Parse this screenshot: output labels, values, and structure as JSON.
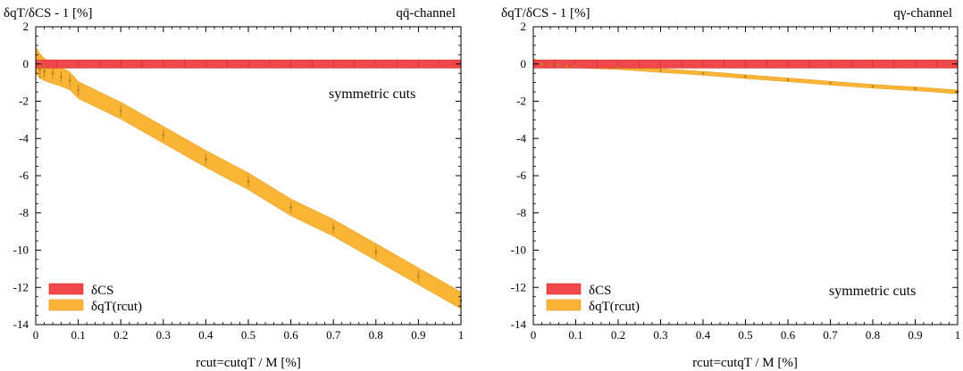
{
  "chart_data": [
    {
      "type": "area",
      "ylabel": "δqT/δCS - 1 [%]",
      "channel_label": "qq̄-channel",
      "xlabel": "rcut=cutqT / M [%]",
      "annotation": "symmetric cuts",
      "xlim": [
        0,
        1
      ],
      "ylim": [
        -14,
        2
      ],
      "xticks": [
        "0",
        "0.1",
        "0.2",
        "0.3",
        "0.4",
        "0.5",
        "0.6",
        "0.7",
        "0.8",
        "0.9",
        "1"
      ],
      "yticks": [
        "2",
        "0",
        "-2",
        "-4",
        "-6",
        "-8",
        "-10",
        "-12",
        "-14"
      ],
      "legend_placement": "bottom-left",
      "colors": {
        "cs": "#f0484a",
        "qt": "#fbb536",
        "point": "#b8861e"
      },
      "series": [
        {
          "name": "δCS",
          "x": [
            0,
            1
          ],
          "y": [
            0,
            0
          ],
          "band": 0.22
        },
        {
          "name": "δqT(rcut)",
          "x": [
            0.0,
            0.01,
            0.02,
            0.04,
            0.06,
            0.08,
            0.1,
            0.2,
            0.3,
            0.4,
            0.5,
            0.6,
            0.7,
            0.8,
            0.9,
            1.0
          ],
          "y": [
            0.2,
            -0.1,
            -0.3,
            -0.5,
            -0.7,
            -0.9,
            -1.4,
            -2.5,
            -3.8,
            -5.1,
            -6.3,
            -7.7,
            -8.8,
            -10.1,
            -11.4,
            -12.7
          ],
          "err": [
            0.7,
            0.65,
            0.6,
            0.55,
            0.5,
            0.48,
            0.45,
            0.45,
            0.45,
            0.45,
            0.45,
            0.45,
            0.45,
            0.45,
            0.45,
            0.45
          ],
          "points": [
            {
              "x": 0.01,
              "y": -0.3,
              "e": 0.5
            },
            {
              "x": 0.02,
              "y": -0.4,
              "e": 0.35
            },
            {
              "x": 0.04,
              "y": -0.5,
              "e": 0.3
            },
            {
              "x": 0.06,
              "y": -0.7,
              "e": 0.3
            },
            {
              "x": 0.08,
              "y": -0.9,
              "e": 0.3
            },
            {
              "x": 0.1,
              "y": -1.4,
              "e": 0.3
            },
            {
              "x": 0.2,
              "y": -2.5,
              "e": 0.3
            },
            {
              "x": 0.3,
              "y": -3.8,
              "e": 0.3
            },
            {
              "x": 0.4,
              "y": -5.1,
              "e": 0.3
            },
            {
              "x": 0.5,
              "y": -6.3,
              "e": 0.3
            },
            {
              "x": 0.6,
              "y": -7.7,
              "e": 0.3
            },
            {
              "x": 0.7,
              "y": -8.8,
              "e": 0.3
            },
            {
              "x": 0.8,
              "y": -10.1,
              "e": 0.3
            },
            {
              "x": 0.9,
              "y": -11.4,
              "e": 0.3
            },
            {
              "x": 1.0,
              "y": -12.7,
              "e": 0.3
            }
          ]
        }
      ]
    },
    {
      "type": "area",
      "ylabel": "δqT/δCS - 1 [%]",
      "channel_label": "qγ-channel",
      "xlabel": "rcut=cutqT / M [%]",
      "annotation": "symmetric cuts",
      "xlim": [
        0,
        1
      ],
      "ylim": [
        -14,
        2
      ],
      "xticks": [
        "0",
        "0.1",
        "0.2",
        "0.3",
        "0.4",
        "0.5",
        "0.6",
        "0.7",
        "0.8",
        "0.9",
        "1"
      ],
      "yticks": [
        "2",
        "0",
        "-2",
        "-4",
        "-6",
        "-8",
        "-10",
        "-12",
        "-14"
      ],
      "legend_placement": "bottom-left",
      "colors": {
        "cs": "#f0484a",
        "qt": "#fbb536",
        "point": "#b8861e"
      },
      "series": [
        {
          "name": "δCS",
          "x": [
            0,
            1
          ],
          "y": [
            0,
            0
          ],
          "band": 0.22
        },
        {
          "name": "δqT(rcut)",
          "x": [
            0.0,
            0.02,
            0.04,
            0.06,
            0.08,
            0.1,
            0.2,
            0.3,
            0.4,
            0.5,
            0.6,
            0.7,
            0.8,
            0.9,
            1.0
          ],
          "y": [
            0.1,
            0.0,
            -0.02,
            -0.05,
            -0.08,
            -0.1,
            -0.2,
            -0.35,
            -0.5,
            -0.68,
            -0.85,
            -1.03,
            -1.2,
            -1.33,
            -1.5
          ],
          "err": [
            0.18,
            0.15,
            0.12,
            0.1,
            0.1,
            0.1,
            0.1,
            0.1,
            0.1,
            0.1,
            0.1,
            0.1,
            0.1,
            0.1,
            0.1
          ],
          "points": [
            {
              "x": 0.02,
              "y": 0.0,
              "e": 0.1
            },
            {
              "x": 0.04,
              "y": -0.02,
              "e": 0.05
            },
            {
              "x": 0.06,
              "y": -0.05,
              "e": 0.05
            },
            {
              "x": 0.08,
              "y": -0.15,
              "e": 0.1
            },
            {
              "x": 0.1,
              "y": -0.1,
              "e": 0.04
            },
            {
              "x": 0.2,
              "y": -0.2,
              "e": 0.04
            },
            {
              "x": 0.3,
              "y": -0.35,
              "e": 0.04
            },
            {
              "x": 0.4,
              "y": -0.5,
              "e": 0.04
            },
            {
              "x": 0.5,
              "y": -0.68,
              "e": 0.04
            },
            {
              "x": 0.6,
              "y": -0.85,
              "e": 0.04
            },
            {
              "x": 0.7,
              "y": -1.03,
              "e": 0.04
            },
            {
              "x": 0.8,
              "y": -1.2,
              "e": 0.04
            },
            {
              "x": 0.9,
              "y": -1.33,
              "e": 0.04
            },
            {
              "x": 1.0,
              "y": -1.5,
              "e": 0.04
            }
          ]
        }
      ]
    }
  ]
}
